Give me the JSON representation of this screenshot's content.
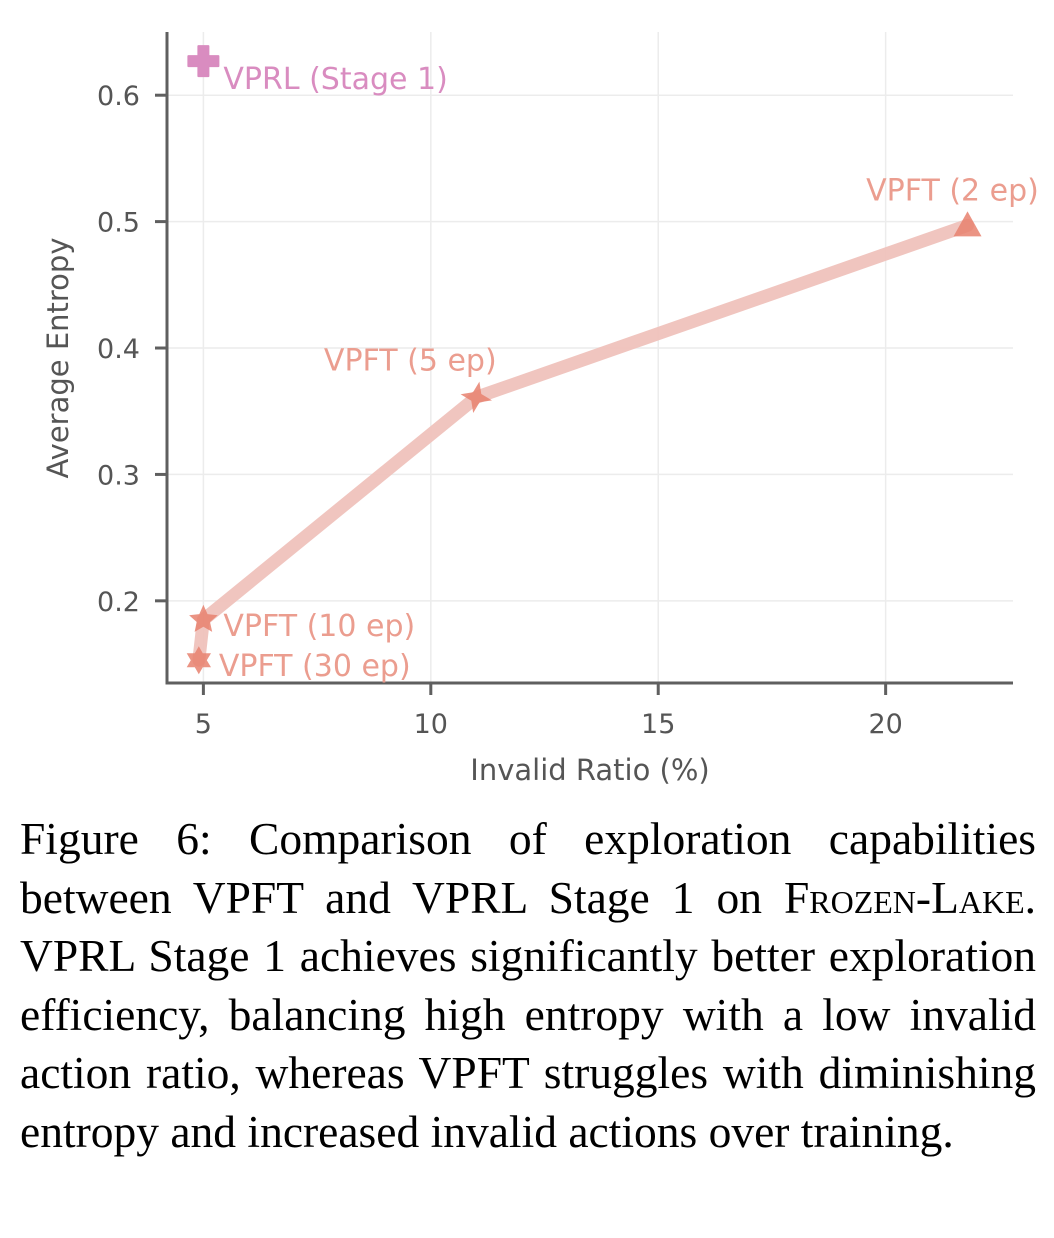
{
  "chart_data": {
    "type": "scatter",
    "title": "",
    "xlabel": "Invalid Ratio (%)",
    "ylabel": "Average Entropy",
    "xlim": [
      4.2,
      22.8
    ],
    "ylim": [
      0.135,
      0.65
    ],
    "xticks": [
      5,
      10,
      15,
      20
    ],
    "yticks": [
      0.2,
      0.3,
      0.4,
      0.5,
      0.6
    ],
    "xtick_labels": [
      "5",
      "10",
      "15",
      "20"
    ],
    "ytick_labels": [
      "0.2",
      "0.3",
      "0.4",
      "0.5",
      "0.6"
    ],
    "grid": true,
    "series": [
      {
        "name": "VPFT",
        "color": "#e8816f",
        "line_color": "#efc2bc",
        "connected": true,
        "points": [
          {
            "label": "VPFT (2 ep)",
            "x": 21.8,
            "y": 0.497,
            "marker": "triangle"
          },
          {
            "label": "VPFT (5 ep)",
            "x": 11.0,
            "y": 0.361,
            "marker": "star4"
          },
          {
            "label": "VPFT (10 ep)",
            "x": 5.0,
            "y": 0.185,
            "marker": "star5"
          },
          {
            "label": "VPFT (30 ep)",
            "x": 4.9,
            "y": 0.153,
            "marker": "star6"
          }
        ]
      },
      {
        "name": "VPRL",
        "color": "#d98cc0",
        "connected": false,
        "points": [
          {
            "label": "VPRL (Stage 1)",
            "x": 5.0,
            "y": 0.627,
            "marker": "plus"
          }
        ]
      }
    ],
    "label_color_vpft": "#eb9d8f",
    "label_color_vprl": "#d98cc0"
  },
  "caption": {
    "prefix": "Figure 6: Comparison of exploration capabilities between VPFT and VPRL Stage 1 on ",
    "env_part1": "Frozen-",
    "env_part2": "Lake",
    "suffix": ". VPRL Stage 1 achieves significantly better exploration efficiency, balancing high entropy with a low invalid action ratio, whereas VPFT struggles with diminishing entropy and increased invalid actions over training."
  }
}
